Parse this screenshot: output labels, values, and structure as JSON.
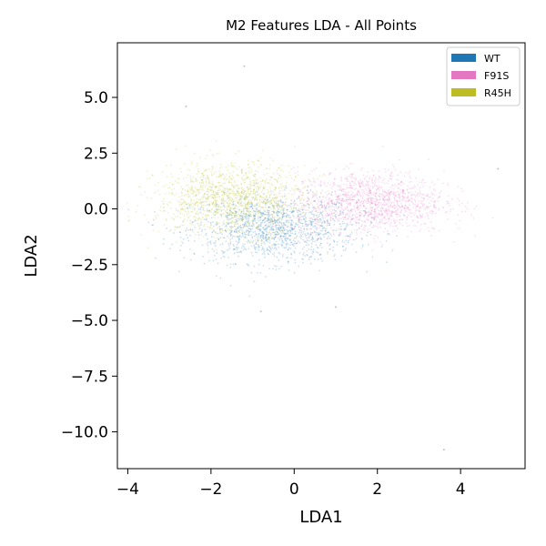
{
  "chart_data": {
    "type": "scatter",
    "title": "M2 Features LDA - All Points",
    "xlabel": "LDA1",
    "ylabel": "LDA2",
    "xlim": [
      -4.25,
      5.55
    ],
    "ylim": [
      -11.65,
      7.45
    ],
    "xticks": [
      -4,
      -2,
      0,
      2,
      4
    ],
    "xtick_labels": [
      "−4",
      "−2",
      "0",
      "2",
      "4"
    ],
    "yticks": [
      5.0,
      2.5,
      0.0,
      -2.5,
      -5.0,
      -7.5,
      -10.0
    ],
    "ytick_labels": [
      "5.0",
      "2.5",
      "0.0",
      "−2.5",
      "−5.0",
      "−7.5",
      "−10.0"
    ],
    "grid": false,
    "legend_position": "top-right",
    "series": [
      {
        "name": "WT",
        "color": "#1f77b4",
        "center": [
          -0.5,
          -0.9
        ],
        "spread": [
          1.0,
          0.75
        ],
        "count": 1400
      },
      {
        "name": "F91S",
        "color": "#e377c2",
        "center": [
          1.8,
          0.3
        ],
        "spread": [
          0.9,
          0.7
        ],
        "count": 1400
      },
      {
        "name": "R45H",
        "color": "#bcbd22",
        "center": [
          -1.5,
          0.4
        ],
        "spread": [
          0.9,
          0.8
        ],
        "count": 1400
      }
    ],
    "outliers": [
      {
        "x": -1.2,
        "y": 6.4
      },
      {
        "x": 3.6,
        "y": -10.8
      },
      {
        "x": -2.6,
        "y": 4.6
      },
      {
        "x": 4.9,
        "y": 1.8
      },
      {
        "x": -0.8,
        "y": -4.6
      },
      {
        "x": 1.0,
        "y": -4.4
      }
    ]
  }
}
